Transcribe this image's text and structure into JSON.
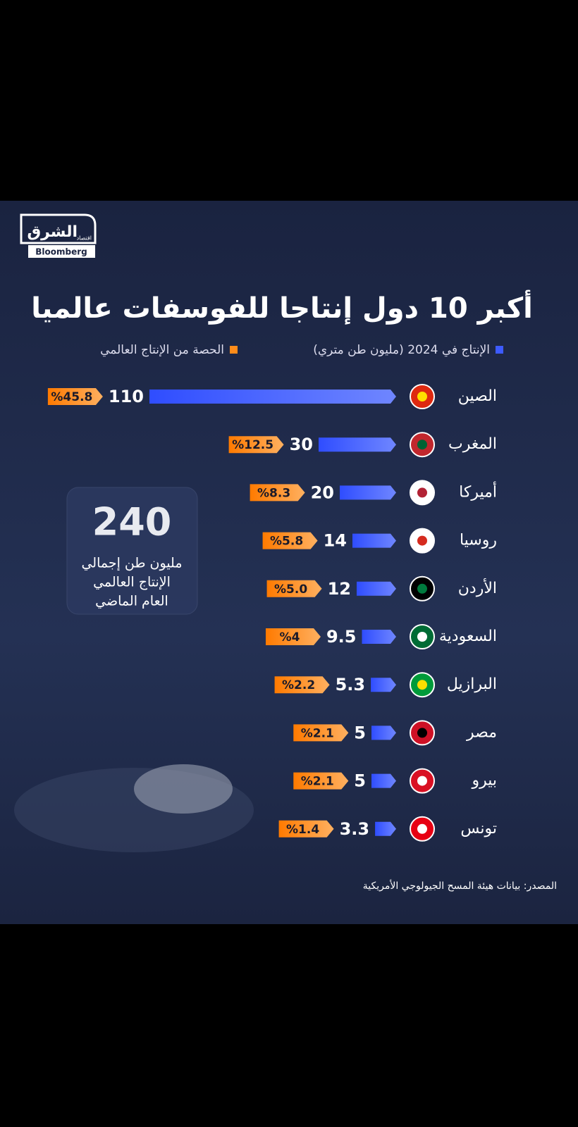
{
  "logo": {
    "name": "الشرق",
    "sub": "اقتصاد",
    "brand": "Bloomberg"
  },
  "chart_data": {
    "type": "bar",
    "title": "أكبر 10 دول إنتاجا للفوسفات عالميا",
    "categories": [
      "الصين",
      "المغرب",
      "أميركا",
      "روسيا",
      "الأردن",
      "السعودية",
      "البرازيل",
      "مصر",
      "بيرو",
      "تونس"
    ],
    "series": [
      {
        "name": "الإنتاج في 2024 (مليون طن متري)",
        "color": "#3d5bff",
        "values": [
          110,
          30,
          20,
          14,
          12,
          9.5,
          5.3,
          5,
          5,
          3.3
        ]
      },
      {
        "name": "الحصة من الإنتاج العالمي",
        "color": "#ff8c1a",
        "values": [
          45.8,
          12.5,
          8.3,
          5.8,
          5.0,
          4,
          2.2,
          2.1,
          2.1,
          1.4
        ],
        "value_labels": [
          "%45.8",
          "%12.5",
          "%8.3",
          "%5.8",
          "%5.0",
          "%4",
          "%2.2",
          "%2.1",
          "%2.1",
          "%1.4"
        ]
      }
    ],
    "callout": {
      "value": 240,
      "lines": [
        "مليون طن إجمالي",
        "الإنتاج العالمي",
        "العام الماضي"
      ]
    },
    "source": "المصدر: بيانات هيئة المسح الجيولوجي الأمريكية"
  }
}
